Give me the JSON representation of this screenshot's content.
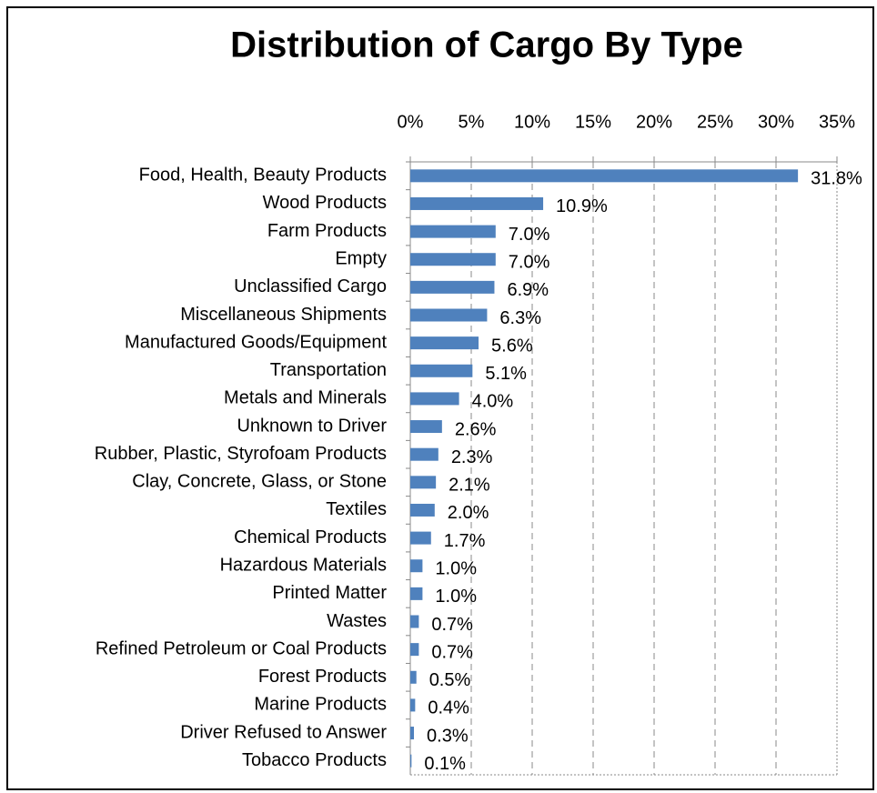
{
  "chart_data": {
    "type": "bar",
    "orientation": "horizontal",
    "title": "Distribution of Cargo By Type",
    "categories": [
      "Food, Health, Beauty Products",
      "Wood Products",
      "Farm Products",
      "Empty",
      "Unclassified Cargo",
      "Miscellaneous Shipments",
      "Manufactured Goods/Equipment",
      "Transportation",
      "Metals and Minerals",
      "Unknown to Driver",
      "Rubber, Plastic, Styrofoam Products",
      "Clay, Concrete, Glass, or Stone",
      "Textiles",
      "Chemical Products",
      "Hazardous Materials",
      "Printed Matter",
      "Wastes",
      "Refined Petroleum or Coal Products",
      "Forest Products",
      "Marine Products",
      "Driver Refused to Answer",
      "Tobacco Products"
    ],
    "values": [
      31.8,
      10.9,
      7.0,
      7.0,
      6.9,
      6.3,
      5.6,
      5.1,
      4.0,
      2.6,
      2.3,
      2.1,
      2.0,
      1.7,
      1.0,
      1.0,
      0.7,
      0.7,
      0.5,
      0.4,
      0.3,
      0.1
    ],
    "value_labels": [
      "31.8%",
      "10.9%",
      "7.0%",
      "7.0%",
      "6.9%",
      "6.3%",
      "5.6%",
      "5.1%",
      "4.0%",
      "2.6%",
      "2.3%",
      "2.1%",
      "2.0%",
      "1.7%",
      "1.0%",
      "1.0%",
      "0.7%",
      "0.7%",
      "0.5%",
      "0.4%",
      "0.3%",
      "0.1%"
    ],
    "color": "#4f81bd",
    "xlim": [
      0,
      35
    ],
    "xticks": [
      {
        "value": 0,
        "label": "0%"
      },
      {
        "value": 5,
        "label": "5%"
      },
      {
        "value": 10,
        "label": "10%"
      },
      {
        "value": 15,
        "label": "15%"
      },
      {
        "value": 20,
        "label": "20%"
      },
      {
        "value": 25,
        "label": "25%"
      },
      {
        "value": 30,
        "label": "30%"
      },
      {
        "value": 35,
        "label": "35%"
      }
    ],
    "grid": true
  }
}
